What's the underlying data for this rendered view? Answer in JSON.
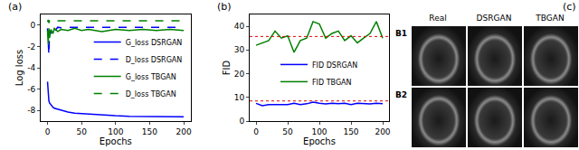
{
  "chart_data": [
    {
      "type": "line",
      "title": "(a)",
      "x_label": "Epochs",
      "y_label": "Log loss",
      "x": [
        0,
        1,
        2,
        3,
        5,
        8,
        10,
        15,
        20,
        30,
        40,
        50,
        60,
        80,
        100,
        120,
        140,
        160,
        180,
        200
      ],
      "series": [
        {
          "name": "G_loss DSRGAN",
          "color": "#0000ff",
          "line_style": "solid",
          "values": [
            -5.3,
            -6.5,
            -7.1,
            -7.3,
            -7.5,
            -7.7,
            -7.8,
            -7.9,
            -8.0,
            -8.15,
            -8.25,
            -8.3,
            -8.35,
            -8.45,
            -8.5,
            -8.55,
            -8.55,
            -8.6,
            -8.6,
            -8.6
          ]
        },
        {
          "name": "D_loss DSRGAN",
          "color": "#0000ff",
          "line_style": "dash",
          "values": [
            -0.3,
            -1.5,
            -2.8,
            -0.5,
            -0.8,
            -0.3,
            -0.6,
            -0.2,
            -0.25,
            -0.2,
            -0.2,
            -0.2,
            -0.2,
            -0.2,
            -0.2,
            -0.2,
            -0.2,
            -0.2,
            -0.2,
            -0.2
          ]
        },
        {
          "name": "G_loss TBGAN",
          "color": "#008000",
          "line_style": "solid",
          "values": [
            -0.5,
            -1.8,
            -0.3,
            -1.2,
            -0.4,
            -0.8,
            -0.3,
            -0.6,
            -0.4,
            -0.5,
            -0.3,
            -0.5,
            -0.4,
            -0.6,
            -0.4,
            -0.5,
            -0.4,
            -0.5,
            -0.4,
            -0.5
          ]
        },
        {
          "name": "D_loss TBGAN",
          "color": "#008000",
          "line_style": "dash",
          "values": [
            0.3,
            0.5,
            0.2,
            0.4,
            0.4,
            0.5,
            0.4,
            0.4,
            0.45,
            0.4,
            0.4,
            0.45,
            0.4,
            0.4,
            0.45,
            0.4,
            0.4,
            0.45,
            0.4,
            0.4
          ]
        }
      ],
      "xlim": [
        -10,
        210
      ],
      "xticks": [
        0,
        50,
        100,
        150,
        200
      ],
      "ylim": [
        -9,
        1
      ],
      "yticks": [
        -8,
        -6,
        -4,
        -2,
        0
      ],
      "grid": false,
      "legend": "center right"
    },
    {
      "type": "line",
      "title": "(b)",
      "x_label": "Epochs",
      "y_label": "FID",
      "x": [
        0,
        10,
        20,
        30,
        40,
        50,
        60,
        70,
        80,
        90,
        100,
        110,
        120,
        130,
        140,
        150,
        160,
        170,
        180,
        190,
        200
      ],
      "series": [
        {
          "name": "FID DSRGAN",
          "color": "#0000ff",
          "line_style": "solid",
          "values": [
            7.5,
            6.5,
            7,
            7,
            7.2,
            7,
            7.5,
            7,
            7.3,
            8,
            7.5,
            7.2,
            7.5,
            7.3,
            7.5,
            7,
            7.5,
            7.3,
            7.2,
            7.5,
            7.3
          ]
        },
        {
          "name": "FID TBGAN",
          "color": "#008000",
          "line_style": "solid",
          "values": [
            32,
            33,
            34,
            38,
            35,
            36,
            29,
            34,
            35,
            42,
            41,
            35,
            37,
            38,
            34,
            36,
            33,
            35,
            37,
            42,
            35
          ]
        }
      ],
      "hlines": [
        {
          "y": 35.7,
          "color": "#e00000",
          "line_style": "dot"
        },
        {
          "y": 8.5,
          "color": "#e00000",
          "line_style": "dot"
        }
      ],
      "xlim": [
        -10,
        210
      ],
      "xticks": [
        0,
        50,
        100,
        150,
        200
      ],
      "ylim": [
        0,
        45
      ],
      "yticks": [
        0,
        10,
        20,
        30,
        40
      ],
      "grid": false,
      "legend": "center"
    }
  ],
  "image_panel": {
    "title": "(c)",
    "columns": [
      "Real",
      "DSRGAN",
      "TBGAN"
    ],
    "rows": [
      "B1",
      "B2"
    ]
  }
}
